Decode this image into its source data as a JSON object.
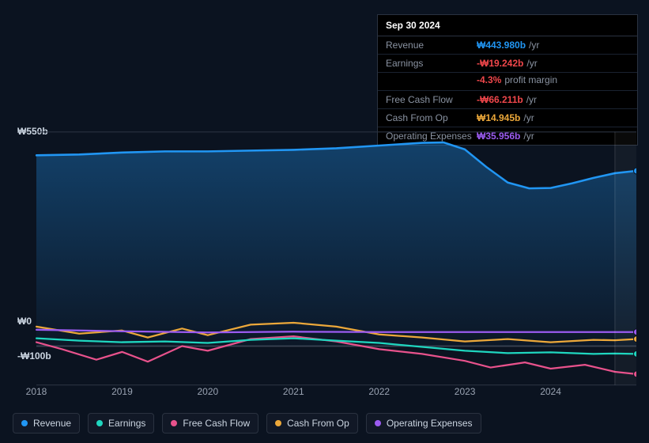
{
  "colors": {
    "revenue": "#2196f3",
    "earnings": "#1fd6bf",
    "free_cash_flow": "#e8528c",
    "cash_from_op": "#eca83a",
    "operating_expenses": "#9b5bf0",
    "bg": "#0b1320",
    "panel_bg": "#000000",
    "border": "#2a3240",
    "muted": "#8a93a2",
    "negative": "#f0474b",
    "grid": "#2a3240"
  },
  "tooltip": {
    "date": "Sep 30 2024",
    "rows": [
      {
        "label": "Revenue",
        "value": "₩443.980b",
        "color_key": "revenue",
        "suffix": "/yr"
      },
      {
        "label": "Earnings",
        "value": "-₩19.242b",
        "color_key": "negative",
        "suffix": "/yr",
        "sub": {
          "value": "-4.3%",
          "text": "profit margin",
          "color_key": "negative"
        }
      },
      {
        "label": "Free Cash Flow",
        "value": "-₩66.211b",
        "color_key": "negative",
        "suffix": "/yr"
      },
      {
        "label": "Cash From Op",
        "value": "₩14.945b",
        "color_key": "cash_from_op",
        "suffix": "/yr"
      },
      {
        "label": "Operating Expenses",
        "value": "₩35.956b",
        "color_key": "operating_expenses",
        "suffix": "/yr"
      }
    ]
  },
  "chart": {
    "type": "line-area",
    "ylim": [
      -100,
      550
    ],
    "yticks": [
      {
        "v": 550,
        "label": "₩550b"
      },
      {
        "v": 0,
        "label": "₩0"
      },
      {
        "v": -100,
        "label": "-₩100b"
      }
    ],
    "x_year_range": [
      2018,
      2025
    ],
    "xticks": [
      2018,
      2019,
      2020,
      2021,
      2022,
      2023,
      2024
    ],
    "highlight_start_year": 2024.75,
    "marker_year": 2024.75,
    "series": {
      "revenue": {
        "label": "Revenue",
        "color_key": "revenue",
        "width": 2.3,
        "fill_opacity": 0.26,
        "fill_to_zero": true,
        "values": [
          [
            2018.0,
            490
          ],
          [
            2018.5,
            492
          ],
          [
            2019.0,
            497
          ],
          [
            2019.5,
            500
          ],
          [
            2020.0,
            500
          ],
          [
            2020.5,
            502
          ],
          [
            2021.0,
            504
          ],
          [
            2021.5,
            508
          ],
          [
            2022.0,
            515
          ],
          [
            2022.5,
            522
          ],
          [
            2022.75,
            523
          ],
          [
            2023.0,
            505
          ],
          [
            2023.25,
            460
          ],
          [
            2023.5,
            420
          ],
          [
            2023.75,
            405
          ],
          [
            2024.0,
            406
          ],
          [
            2024.25,
            418
          ],
          [
            2024.5,
            432
          ],
          [
            2024.75,
            444
          ],
          [
            2025.0,
            450
          ]
        ]
      },
      "operating_expenses": {
        "label": "Operating Expenses",
        "color_key": "operating_expenses",
        "width": 2,
        "values": [
          [
            2018.0,
            42
          ],
          [
            2019.0,
            38
          ],
          [
            2020.0,
            35
          ],
          [
            2021.0,
            37
          ],
          [
            2022.0,
            36
          ],
          [
            2023.0,
            36
          ],
          [
            2024.0,
            36
          ],
          [
            2024.75,
            36
          ],
          [
            2025.0,
            36
          ]
        ]
      },
      "cash_from_op": {
        "label": "Cash From Op",
        "color_key": "cash_from_op",
        "width": 2,
        "values": [
          [
            2018.0,
            50
          ],
          [
            2018.5,
            32
          ],
          [
            2019.0,
            40
          ],
          [
            2019.3,
            22
          ],
          [
            2019.7,
            45
          ],
          [
            2020.0,
            28
          ],
          [
            2020.5,
            55
          ],
          [
            2021.0,
            60
          ],
          [
            2021.5,
            50
          ],
          [
            2022.0,
            30
          ],
          [
            2022.5,
            22
          ],
          [
            2023.0,
            12
          ],
          [
            2023.5,
            18
          ],
          [
            2024.0,
            10
          ],
          [
            2024.5,
            16
          ],
          [
            2024.75,
            15
          ],
          [
            2025.0,
            18
          ]
        ]
      },
      "earnings": {
        "label": "Earnings",
        "color_key": "earnings",
        "width": 2,
        "values": [
          [
            2018.0,
            20
          ],
          [
            2018.5,
            14
          ],
          [
            2019.0,
            10
          ],
          [
            2019.5,
            12
          ],
          [
            2020.0,
            8
          ],
          [
            2020.5,
            16
          ],
          [
            2021.0,
            20
          ],
          [
            2021.5,
            14
          ],
          [
            2022.0,
            8
          ],
          [
            2022.5,
            -2
          ],
          [
            2023.0,
            -12
          ],
          [
            2023.5,
            -18
          ],
          [
            2024.0,
            -16
          ],
          [
            2024.5,
            -20
          ],
          [
            2024.75,
            -19
          ],
          [
            2025.0,
            -20
          ]
        ]
      },
      "free_cash_flow": {
        "label": "Free Cash Flow",
        "color_key": "free_cash_flow",
        "width": 2,
        "values": [
          [
            2018.0,
            10
          ],
          [
            2018.3,
            -8
          ],
          [
            2018.7,
            -35
          ],
          [
            2019.0,
            -15
          ],
          [
            2019.3,
            -40
          ],
          [
            2019.7,
            0
          ],
          [
            2020.0,
            -12
          ],
          [
            2020.5,
            18
          ],
          [
            2021.0,
            25
          ],
          [
            2021.5,
            12
          ],
          [
            2022.0,
            -8
          ],
          [
            2022.5,
            -20
          ],
          [
            2023.0,
            -38
          ],
          [
            2023.3,
            -55
          ],
          [
            2023.7,
            -42
          ],
          [
            2024.0,
            -58
          ],
          [
            2024.4,
            -48
          ],
          [
            2024.75,
            -66
          ],
          [
            2025.0,
            -72
          ]
        ]
      }
    },
    "legend_order": [
      "revenue",
      "earnings",
      "free_cash_flow",
      "cash_from_op",
      "operating_expenses"
    ]
  }
}
